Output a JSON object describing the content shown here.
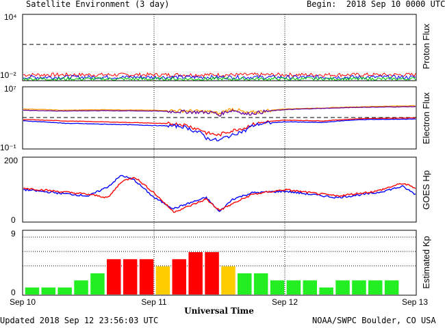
{
  "header": {
    "title": "Satellite Environment (3 day)",
    "begin": "Begin:  2018 Sep 10 0000 UTC"
  },
  "footer": {
    "updated": "Updated 2018 Sep 12 23:56:03 UTC",
    "credit": "NOAA/SWPC Boulder, CO USA"
  },
  "chart_data": [
    {
      "type": "line",
      "panel": "proton",
      "ylabel": "Proton Flux",
      "yscale": "log",
      "ylim": [
        0.01,
        10000
      ],
      "tick_labels": [
        "10⁴",
        "10⁻²"
      ],
      "threshold": 10,
      "x_range_days": [
        0,
        3
      ],
      "series": [
        {
          "color": "#ff0000",
          "level": 0.03
        },
        {
          "color": "#0000ff",
          "level": 0.018
        },
        {
          "color": "#00cc00",
          "level": 0.012
        }
      ]
    },
    {
      "type": "line",
      "panel": "electron",
      "ylabel": "Electron Flux",
      "yscale": "log",
      "ylim": [
        0.1,
        10000000
      ],
      "tick_labels": [
        "10⁷",
        "10⁻¹"
      ],
      "threshold": 1000,
      "series": [
        {
          "color": "#ff9900",
          "x": [
            0,
            0.3,
            0.6,
            1.0,
            1.3,
            1.45,
            1.5,
            1.6,
            1.7,
            1.8,
            2.0,
            2.3,
            2.6,
            3.0
          ],
          "y": [
            15000,
            10000,
            12000,
            10000,
            8000,
            6000,
            3000,
            15000,
            4000,
            6000,
            15000,
            20000,
            30000,
            40000
          ]
        },
        {
          "color": "#660099",
          "x": [
            0,
            0.3,
            0.6,
            1.0,
            1.3,
            1.45,
            1.5,
            1.6,
            1.7,
            1.8,
            2.0,
            2.3,
            2.6,
            3.0
          ],
          "y": [
            10000,
            8000,
            9000,
            8000,
            6000,
            5000,
            2000,
            10000,
            3000,
            5000,
            12000,
            18000,
            25000,
            30000
          ]
        },
        {
          "color": "#ff0000",
          "x": [
            0,
            0.3,
            0.6,
            1.0,
            1.2,
            1.3,
            1.4,
            1.5,
            1.6,
            1.7,
            1.8,
            2.0,
            2.3,
            2.6,
            3.0
          ],
          "y": [
            600,
            400,
            300,
            200,
            150,
            50,
            10,
            5,
            20,
            50,
            200,
            500,
            400,
            800,
            1000
          ]
        },
        {
          "color": "#0000ff",
          "x": [
            0,
            0.3,
            0.6,
            1.0,
            1.2,
            1.3,
            1.4,
            1.5,
            1.6,
            1.7,
            1.8,
            2.0,
            2.3,
            2.6,
            3.0
          ],
          "y": [
            400,
            200,
            150,
            100,
            80,
            20,
            2,
            1,
            5,
            20,
            150,
            300,
            250,
            600,
            700
          ]
        }
      ]
    },
    {
      "type": "line",
      "panel": "hp",
      "ylabel": "GOES Hp",
      "ylim": [
        0,
        200
      ],
      "tick_labels": [
        "200",
        "0"
      ],
      "series": [
        {
          "color": "#0000ff",
          "x": [
            0,
            0.25,
            0.5,
            0.65,
            0.75,
            0.85,
            1.0,
            1.15,
            1.25,
            1.4,
            1.5,
            1.6,
            1.75,
            2.0,
            2.4,
            2.7,
            2.9,
            3.0
          ],
          "y": [
            100,
            90,
            80,
            110,
            145,
            130,
            75,
            40,
            55,
            75,
            30,
            70,
            90,
            95,
            75,
            90,
            110,
            85
          ]
        },
        {
          "color": "#ff0000",
          "x": [
            0,
            0.25,
            0.5,
            0.65,
            0.75,
            0.85,
            1.0,
            1.15,
            1.25,
            1.4,
            1.5,
            1.6,
            1.75,
            2.0,
            2.4,
            2.7,
            2.9,
            3.0
          ],
          "y": [
            105,
            95,
            85,
            75,
            125,
            140,
            90,
            30,
            45,
            70,
            35,
            55,
            85,
            100,
            80,
            95,
            120,
            105
          ]
        }
      ]
    },
    {
      "type": "bar",
      "panel": "kp",
      "ylabel": "Estimated Kp",
      "ylim": [
        0,
        9
      ],
      "tick_labels": [
        "9",
        "0"
      ],
      "x_labels": [
        "Sep 10",
        "Sep 11",
        "Sep 12",
        "Sep 13"
      ],
      "xlabel": "Universal Time",
      "values": [
        1,
        1,
        1,
        2,
        3,
        5,
        5,
        5,
        4,
        5,
        6,
        6,
        4,
        3,
        3,
        2,
        2,
        2,
        1,
        2,
        2,
        2,
        2
      ],
      "colors": {
        "low": "#22ee22",
        "active": "#ffcc00",
        "storm": "#ff0000"
      }
    }
  ]
}
